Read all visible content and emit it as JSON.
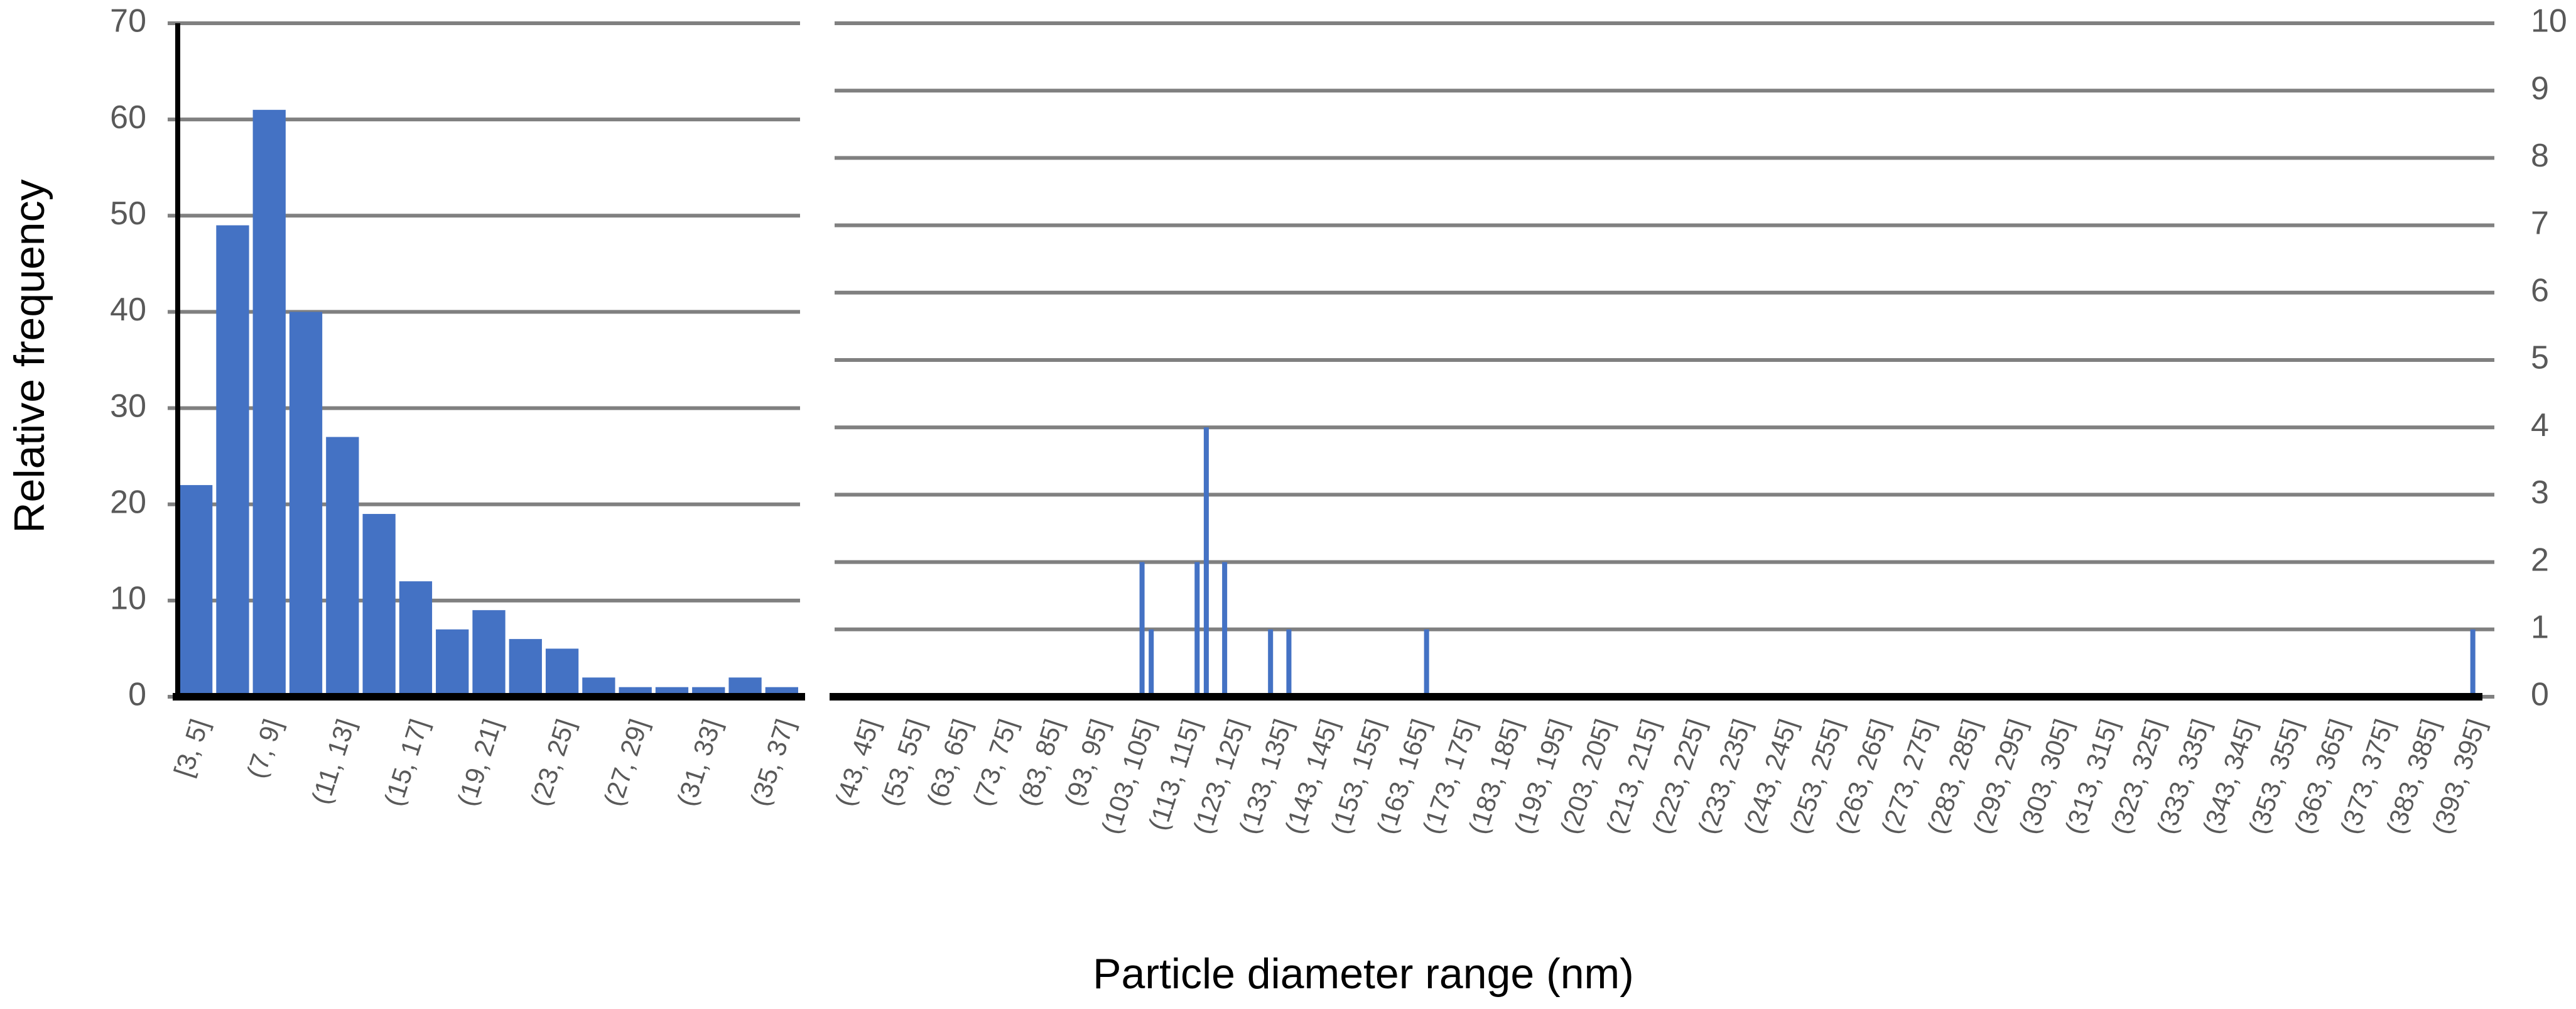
{
  "chart_data": [
    {
      "type": "bar",
      "ylabel": "Relative frequency",
      "color": "#4472c4",
      "axis_side": "left",
      "categories": [
        "[3, 5]",
        null,
        "(7, 9]",
        null,
        "(11, 13]",
        null,
        "(15, 17]",
        null,
        "(19, 21]",
        null,
        "(23, 25]",
        null,
        "(27, 29]",
        null,
        "(31, 33]",
        null,
        "(35, 37]"
      ],
      "values": [
        22,
        49,
        61,
        40,
        27,
        19,
        12,
        7,
        9,
        6,
        5,
        2,
        1,
        1,
        1,
        2,
        1
      ],
      "ylim": [
        0,
        70
      ],
      "yticks": [
        0,
        10,
        20,
        30,
        40,
        50,
        60,
        70
      ],
      "grid": true
    },
    {
      "type": "bar",
      "xlabel": "Particle diameter range (nm)",
      "color": "#4472c4",
      "axis_side": "right",
      "categories": [
        null,
        null,
        null,
        "(43, 45]",
        null,
        null,
        null,
        null,
        "(53, 55]",
        null,
        null,
        null,
        null,
        "(63, 65]",
        null,
        null,
        null,
        null,
        "(73, 75]",
        null,
        null,
        null,
        null,
        "(83, 85]",
        null,
        null,
        null,
        null,
        "(93, 95]",
        null,
        null,
        null,
        null,
        "(103, 105]",
        null,
        null,
        null,
        null,
        "(113, 115]",
        null,
        null,
        null,
        null,
        "(123, 125]",
        null,
        null,
        null,
        null,
        "(133, 135]",
        null,
        null,
        null,
        null,
        "(143, 145]",
        null,
        null,
        null,
        null,
        "(153, 155]",
        null,
        null,
        null,
        null,
        "(163, 165]",
        null,
        null,
        null,
        null,
        "(173, 175]",
        null,
        null,
        null,
        null,
        "(183, 185]",
        null,
        null,
        null,
        null,
        "(193, 195]",
        null,
        null,
        null,
        null,
        "(203, 205]",
        null,
        null,
        null,
        null,
        "(213, 215]",
        null,
        null,
        null,
        null,
        "(223, 225]",
        null,
        null,
        null,
        null,
        "(233, 235]",
        null,
        null,
        null,
        null,
        "(243, 245]",
        null,
        null,
        null,
        null,
        "(253, 255]",
        null,
        null,
        null,
        null,
        "(263, 265]",
        null,
        null,
        null,
        null,
        "(273, 275]",
        null,
        null,
        null,
        null,
        "(283, 285]",
        null,
        null,
        null,
        null,
        "(293, 295]",
        null,
        null,
        null,
        null,
        "(303, 305]",
        null,
        null,
        null,
        null,
        "(313, 315]",
        null,
        null,
        null,
        null,
        "(323, 325]",
        null,
        null,
        null,
        null,
        "(333, 335]",
        null,
        null,
        null,
        null,
        "(343, 345]",
        null,
        null,
        null,
        null,
        "(353, 355]",
        null,
        null,
        null,
        null,
        "(363, 365]",
        null,
        null,
        null,
        null,
        "(373, 375]",
        null,
        null,
        null,
        null,
        "(383, 385]",
        null,
        null,
        null,
        null,
        "(393, 395]"
      ],
      "values": [
        0,
        0,
        0,
        0,
        0,
        0,
        0,
        0,
        0,
        0,
        0,
        0,
        0,
        0,
        0,
        0,
        0,
        0,
        0,
        0,
        0,
        0,
        0,
        0,
        0,
        0,
        0,
        0,
        0,
        0,
        0,
        0,
        0,
        2,
        1,
        0,
        0,
        0,
        0,
        2,
        4,
        0,
        2,
        0,
        0,
        0,
        0,
        1,
        0,
        1,
        0,
        0,
        0,
        0,
        0,
        0,
        0,
        0,
        0,
        0,
        0,
        0,
        0,
        0,
        1,
        0,
        0,
        0,
        0,
        0,
        0,
        0,
        0,
        0,
        0,
        0,
        0,
        0,
        0,
        0,
        0,
        0,
        0,
        0,
        0,
        0,
        0,
        0,
        0,
        0,
        0,
        0,
        0,
        0,
        0,
        0,
        0,
        0,
        0,
        0,
        0,
        0,
        0,
        0,
        0,
        0,
        0,
        0,
        0,
        0,
        0,
        0,
        0,
        0,
        0,
        0,
        0,
        0,
        0,
        0,
        0,
        0,
        0,
        0,
        0,
        0,
        0,
        0,
        0,
        0,
        0,
        0,
        0,
        0,
        0,
        0,
        0,
        0,
        0,
        0,
        0,
        0,
        0,
        0,
        0,
        0,
        0,
        0,
        0,
        0,
        0,
        0,
        0,
        0,
        0,
        0,
        0,
        0,
        0,
        0,
        0,
        0,
        0,
        0,
        0,
        0,
        0,
        0,
        0,
        0,
        0,
        0,
        0,
        0,
        0,
        0,
        0,
        0,
        1
      ],
      "ylim": [
        0,
        10
      ],
      "yticks": [
        0,
        1,
        2,
        3,
        4,
        5,
        6,
        7,
        8,
        9,
        10
      ],
      "grid": true
    }
  ]
}
